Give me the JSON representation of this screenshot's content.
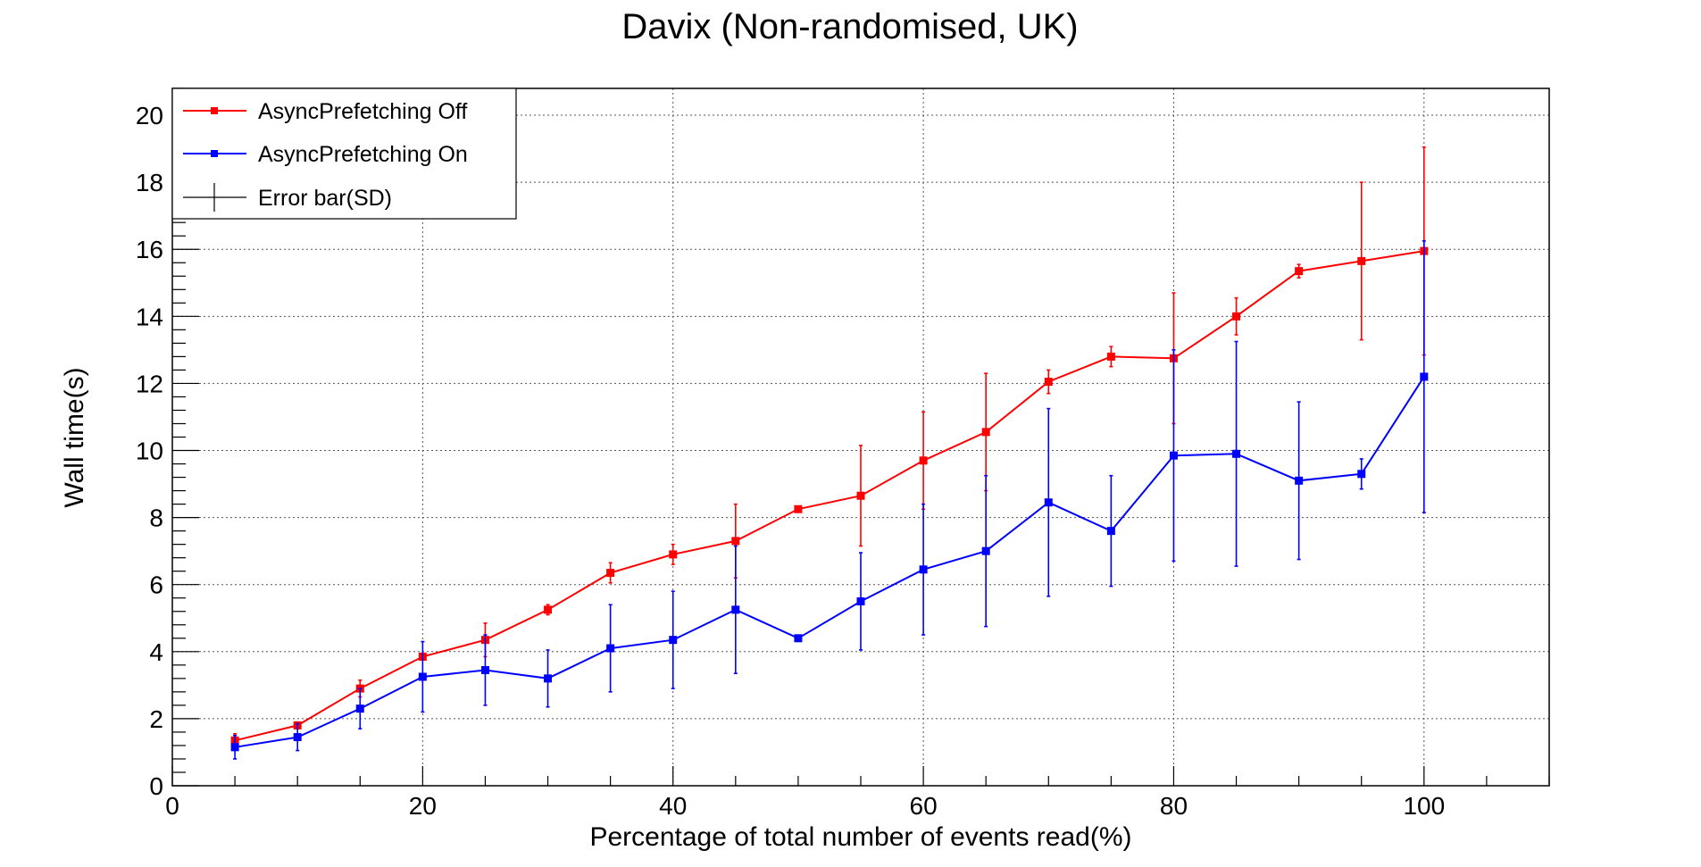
{
  "chart_data": {
    "type": "line",
    "title": "Davix (Non-randomised, UK)",
    "xlabel": "Percentage of total number of events read(%)",
    "ylabel": "Wall time(s)",
    "xlim": [
      0,
      110
    ],
    "ylim": [
      0,
      20.8
    ],
    "xticks": [
      0,
      20,
      40,
      60,
      80,
      100
    ],
    "yticks": [
      0,
      2,
      4,
      6,
      8,
      10,
      12,
      14,
      16,
      18,
      20
    ],
    "grid": true,
    "legend_position": "top-left",
    "x": [
      5,
      10,
      15,
      20,
      25,
      30,
      35,
      40,
      45,
      50,
      55,
      60,
      65,
      70,
      75,
      80,
      85,
      90,
      95,
      100
    ],
    "series": [
      {
        "name": "AsyncPrefetching Off",
        "color": "#ff0000",
        "values": [
          1.35,
          1.8,
          2.9,
          3.85,
          4.35,
          5.25,
          6.35,
          6.9,
          7.3,
          8.25,
          8.65,
          9.7,
          10.55,
          12.05,
          12.8,
          12.75,
          14.0,
          15.35,
          15.65,
          15.95
        ],
        "errors": [
          0.2,
          0.1,
          0.25,
          0.1,
          0.5,
          0.15,
          0.3,
          0.3,
          1.1,
          0.05,
          1.5,
          1.45,
          1.75,
          0.35,
          0.3,
          1.95,
          0.55,
          0.2,
          2.35,
          3.1
        ]
      },
      {
        "name": "AsyncPrefetching On",
        "color": "#0000ff",
        "values": [
          1.15,
          1.45,
          2.3,
          3.25,
          3.45,
          3.2,
          4.1,
          4.35,
          5.25,
          4.4,
          5.5,
          6.45,
          7.0,
          8.45,
          7.6,
          9.85,
          9.9,
          9.1,
          9.3,
          12.2
        ],
        "errors": [
          0.35,
          0.4,
          0.6,
          1.05,
          1.05,
          0.85,
          1.3,
          1.45,
          1.9,
          0.05,
          1.45,
          1.95,
          2.25,
          2.8,
          1.65,
          3.15,
          3.35,
          2.35,
          0.45,
          4.05
        ]
      }
    ],
    "legend": {
      "off_label": "AsyncPrefetching Off",
      "on_label": "AsyncPrefetching On",
      "error_label": "Error bar(SD)"
    }
  }
}
